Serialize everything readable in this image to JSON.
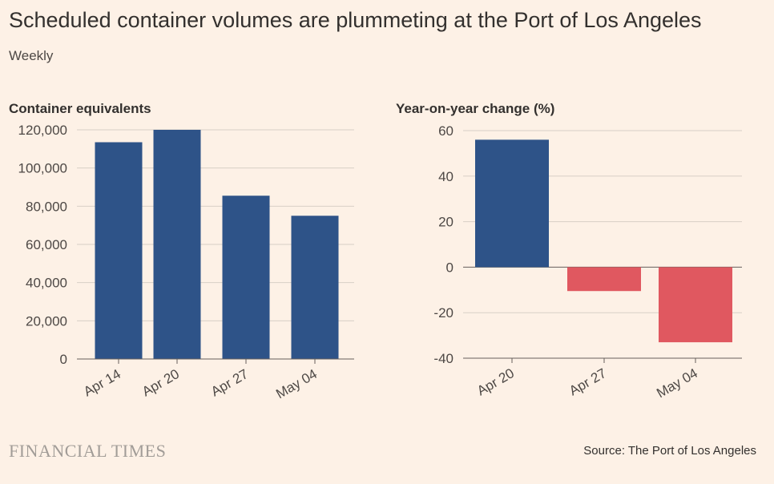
{
  "header": {
    "title": "Scheduled container volumes are plummeting at the Port of Los Angeles",
    "subtitle": "Weekly"
  },
  "footer": {
    "brand": "FINANCIAL TIMES",
    "source": "Source: The Port of Los Angeles"
  },
  "colors": {
    "positive": "#2e5388",
    "negative": "#e05860",
    "grid": "#d8cfc6",
    "axis": "#66605c"
  },
  "chart_data": [
    {
      "type": "bar",
      "title": "Container equivalents",
      "categories": [
        "Apr 14",
        "Apr 20",
        "Apr 27",
        "May 04"
      ],
      "values": [
        113500,
        120000,
        85500,
        75000
      ],
      "ylim": [
        0,
        120000
      ],
      "yticks": [
        0,
        20000,
        40000,
        60000,
        80000,
        100000,
        120000
      ],
      "ytick_labels": [
        "0",
        "20,000",
        "40,000",
        "60,000",
        "80,000",
        "100,000",
        "120,000"
      ],
      "grid": true
    },
    {
      "type": "bar",
      "title": "Year-on-year change (%)",
      "categories": [
        "Apr 20",
        "Apr 27",
        "May 04"
      ],
      "values": [
        56,
        -10.5,
        -33
      ],
      "ylim": [
        -40,
        60
      ],
      "yticks": [
        -40,
        -20,
        0,
        20,
        40,
        60
      ],
      "ytick_labels": [
        "-40",
        "-20",
        "0",
        "20",
        "40",
        "60"
      ],
      "grid": true
    }
  ]
}
